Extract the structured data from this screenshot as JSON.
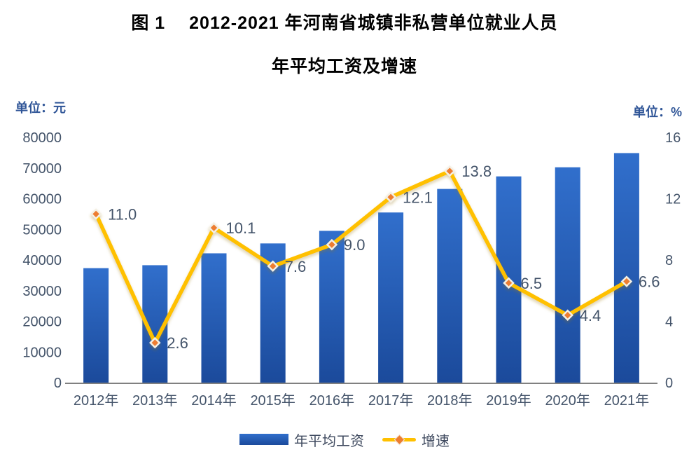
{
  "title": {
    "line1": "图 1　 2012-2021 年河南省城镇非私营单位就业人员",
    "line2": "年平均工资及增速"
  },
  "left_axis_unit": "单位：元",
  "right_axis_unit": "单位：%",
  "legend": {
    "bar_label": "年平均工资",
    "line_label": "增速"
  },
  "colors": {
    "bar_top": "#316FCC",
    "bar_bottom": "#1B4A9B",
    "line": "#FFC000",
    "marker_fill": "#ED7D31",
    "marker_stroke": "#F4F0E4",
    "axis_text": "#44546A",
    "data_label_text": "#44546A",
    "axis_line": "#808080",
    "unit_text": "#2F5597",
    "title_text": "#000000"
  },
  "chart_data": {
    "type": "bar",
    "subtype": "combo-bar-line",
    "categories": [
      "2012年",
      "2013年",
      "2014年",
      "2015年",
      "2016年",
      "2017年",
      "2018年",
      "2019年",
      "2020年",
      "2021年"
    ],
    "series": [
      {
        "name": "年平均工资",
        "type": "bar",
        "axis": "left",
        "values": [
          37338,
          38301,
          42179,
          45403,
          49505,
          55495,
          63174,
          67268,
          70239,
          74872
        ]
      },
      {
        "name": "增速",
        "type": "line",
        "axis": "right",
        "values": [
          11.0,
          2.6,
          10.1,
          7.6,
          9.0,
          12.1,
          13.8,
          6.5,
          4.4,
          6.6
        ],
        "labels": [
          "11.0",
          "2.6",
          "10.1",
          "7.6",
          "9.0",
          "12.1",
          "13.8",
          "6.5",
          "4.4",
          "6.6"
        ]
      }
    ],
    "left_axis": {
      "min": 0,
      "max": 80000,
      "step": 10000,
      "ticks": [
        "80000",
        "70000",
        "60000",
        "50000",
        "40000",
        "30000",
        "20000",
        "10000",
        "0"
      ]
    },
    "right_axis": {
      "min": 0,
      "max": 16,
      "step": 4,
      "ticks": [
        "16",
        "12",
        "8",
        "4",
        "0"
      ]
    },
    "grid": false,
    "legend_position": "bottom",
    "title": "图 1 2012-2021 年河南省城镇非私营单位就业人员年平均工资及增速",
    "xlabel": "",
    "ylabel_left": "单位：元",
    "ylabel_right": "单位：%"
  }
}
